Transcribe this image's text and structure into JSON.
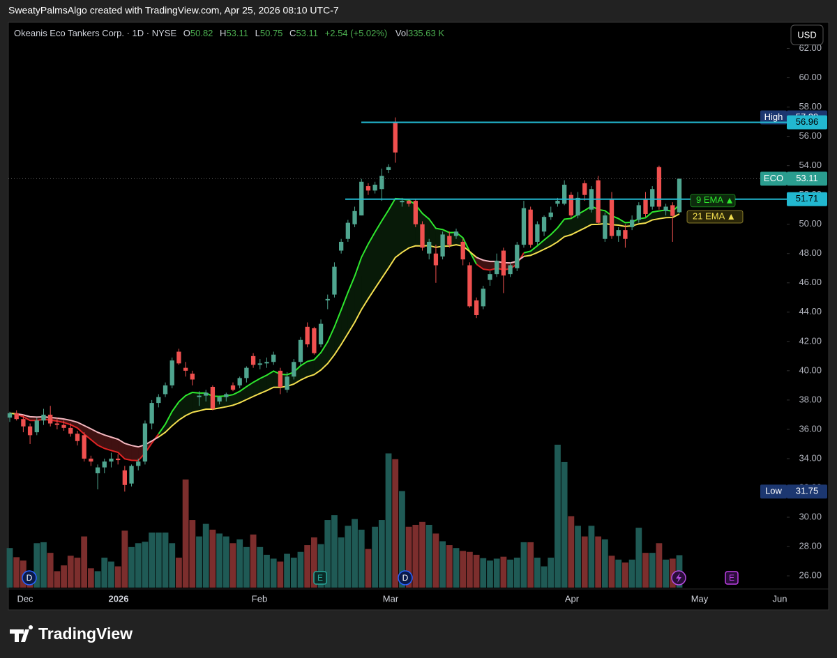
{
  "header": {
    "caption": "SweatyPalmsAlgo created with TradingView.com, Apr 25, 2026 08:10 UTC-7",
    "currency": "USD"
  },
  "legend": {
    "symbol": "Okeanis Eco Tankers Corp. · 1D · NYSE",
    "open_label": "O",
    "high_label": "H",
    "low_label": "L",
    "close_label": "C",
    "change": "+2.54 (+5.02%)",
    "volume_label": "Vol",
    "volume_text": "335.63 K"
  },
  "chart_data": {
    "type": "candlestick",
    "open": [
      36.8,
      37.1,
      36.7,
      36.2,
      35.8,
      36.6,
      37.0,
      36.4,
      36.3,
      36.1,
      35.7,
      35.6,
      34.0,
      33.0,
      33.4,
      33.8,
      34.0,
      33.2,
      32.3,
      33.5,
      33.8,
      36.4,
      37.8,
      38.4,
      39.0,
      41.3,
      40.2,
      39.8,
      38.2,
      38.3,
      38.9,
      37.9,
      38.2,
      39.0,
      39.0,
      39.5,
      41.0,
      40.4,
      40.5,
      40.6,
      40.0,
      38.7,
      39.6,
      40.6,
      43.0,
      42.9,
      41.8,
      44.8,
      45.2,
      48.2,
      49.0,
      50.0,
      50.6,
      52.6,
      52.3,
      52.4,
      53.7,
      56.96,
      51.5,
      51.6,
      51.6,
      50.0,
      48.0,
      48.0,
      47.8,
      49.2,
      49.2,
      48.8,
      47.2,
      44.8,
      44.4,
      46.2,
      46.6,
      48.2,
      46.6,
      47.0,
      48.6,
      51.0,
      48.8,
      49.5,
      50.5,
      51.4,
      51.4,
      52.0,
      50.6,
      52.8,
      51.0,
      53.0,
      49.0,
      51.7,
      49.2,
      49.6,
      49.8,
      50.3,
      51.7,
      51.2,
      53.9,
      50.9,
      51.3,
      50.82
    ],
    "high": [
      37.2,
      37.3,
      37.0,
      36.4,
      36.8,
      37.4,
      37.6,
      36.8,
      36.6,
      36.4,
      35.9,
      35.8,
      34.2,
      33.6,
      34.0,
      34.4,
      34.3,
      33.5,
      33.6,
      34.0,
      36.6,
      38.0,
      38.4,
      39.2,
      40.9,
      41.5,
      40.6,
      40.0,
      38.6,
      38.7,
      39.0,
      38.3,
      38.5,
      39.2,
      39.6,
      40.3,
      41.2,
      40.8,
      40.9,
      41.3,
      40.2,
      39.9,
      40.8,
      42.3,
      43.3,
      43.0,
      43.5,
      45.2,
      47.4,
      49.0,
      50.3,
      51.2,
      53.1,
      52.8,
      52.9,
      53.8,
      54.1,
      57.29,
      51.8,
      51.7,
      51.7,
      50.2,
      49.0,
      48.6,
      49.5,
      49.5,
      49.7,
      49.0,
      47.4,
      45.0,
      45.8,
      46.8,
      48.0,
      48.4,
      47.4,
      48.8,
      51.6,
      51.2,
      50.2,
      50.6,
      51.2,
      51.8,
      53.0,
      52.2,
      52.2,
      53.0,
      52.6,
      53.3,
      50.8,
      52.2,
      49.8,
      50.0,
      50.6,
      51.5,
      52.2,
      52.6,
      54.0,
      51.4,
      51.5,
      53.11
    ],
    "low": [
      36.5,
      36.6,
      35.8,
      35.0,
      35.6,
      36.3,
      36.2,
      36.0,
      35.9,
      35.5,
      34.9,
      33.8,
      33.5,
      31.9,
      33.0,
      33.4,
      33.6,
      31.75,
      32.1,
      33.2,
      33.6,
      36.0,
      37.5,
      38.2,
      38.8,
      40.4,
      39.6,
      39.0,
      37.6,
      37.9,
      37.3,
      37.7,
      37.9,
      38.6,
      38.8,
      39.2,
      40.2,
      40.1,
      40.2,
      40.4,
      38.4,
      38.5,
      39.4,
      40.4,
      41.6,
      41.1,
      41.6,
      44.2,
      45.0,
      48.0,
      48.8,
      49.8,
      50.6,
      52.0,
      52.1,
      51.6,
      53.5,
      54.2,
      51.2,
      51.2,
      49.8,
      48.2,
      47.6,
      46.0,
      47.6,
      48.4,
      49.0,
      47.2,
      44.3,
      43.6,
      44.2,
      45.8,
      46.4,
      45.3,
      46.4,
      46.8,
      48.4,
      48.4,
      48.6,
      49.2,
      50.3,
      51.2,
      51.3,
      50.4,
      50.4,
      51.6,
      50.8,
      50.0,
      48.8,
      49.0,
      48.8,
      48.4,
      49.6,
      50.1,
      50.5,
      51.0,
      51.0,
      50.6,
      48.8,
      50.75
    ],
    "close": [
      37.1,
      36.7,
      36.2,
      35.6,
      36.6,
      37.0,
      36.4,
      36.3,
      36.1,
      35.7,
      35.2,
      34.0,
      33.8,
      33.4,
      33.8,
      34.0,
      33.9,
      32.2,
      33.5,
      33.8,
      36.4,
      37.8,
      38.2,
      39.0,
      40.7,
      40.5,
      40.0,
      39.4,
      38.3,
      38.5,
      37.4,
      38.2,
      38.4,
      38.7,
      39.5,
      40.2,
      40.4,
      40.5,
      40.6,
      41.1,
      38.9,
      39.6,
      40.6,
      42.1,
      41.8,
      41.2,
      43.2,
      44.9,
      47.1,
      48.8,
      50.1,
      50.9,
      52.9,
      52.3,
      52.7,
      53.3,
      53.9,
      54.9,
      51.6,
      51.4,
      50.0,
      48.4,
      48.8,
      47.2,
      49.3,
      48.6,
      49.5,
      47.6,
      44.4,
      43.8,
      45.6,
      46.6,
      47.5,
      46.5,
      47.2,
      48.6,
      51.1,
      48.6,
      50.0,
      50.5,
      50.8,
      51.6,
      52.7,
      50.6,
      51.8,
      52.0,
      52.4,
      50.1,
      50.6,
      49.2,
      49.6,
      49.0,
      50.3,
      51.3,
      50.7,
      52.4,
      51.2,
      51.2,
      50.57,
      53.11
    ],
    "volume": [
      410,
      315,
      280,
      170,
      460,
      470,
      360,
      170,
      230,
      330,
      310,
      530,
      200,
      170,
      310,
      270,
      220,
      590,
      420,
      460,
      475,
      570,
      570,
      570,
      460,
      310,
      1120,
      700,
      530,
      660,
      600,
      560,
      530,
      460,
      500,
      420,
      550,
      420,
      340,
      300,
      270,
      350,
      310,
      370,
      440,
      520,
      450,
      700,
      750,
      520,
      640,
      710,
      600,
      400,
      630,
      700,
      1390,
      1330,
      1000,
      630,
      650,
      680,
      650,
      560,
      480,
      440,
      410,
      380,
      370,
      340,
      305,
      280,
      300,
      320,
      290,
      310,
      470,
      470,
      310,
      220,
      310,
      1480,
      1300,
      740,
      640,
      530,
      640,
      530,
      500,
      330,
      290,
      260,
      290,
      620,
      360,
      360,
      460,
      290,
      300,
      335.63
    ],
    "up_color": "#4fa58f",
    "down_color": "#f0504f",
    "volume_up_color": "#1f5a55",
    "volume_down_color": "#7c2e2d",
    "x_labels": [
      "Dec",
      "2026",
      "Feb",
      "Mar",
      "Apr",
      "May",
      "Jun"
    ],
    "ylim": [
      25.1,
      63.5
    ],
    "yticks": [
      {
        "value": 26,
        "label": "26.00"
      },
      {
        "value": 28,
        "label": "28.00"
      },
      {
        "value": 30,
        "label": "30.00"
      },
      {
        "value": 32,
        "label": "32.00"
      },
      {
        "value": 34,
        "label": "34.00"
      },
      {
        "value": 36,
        "label": "36.00"
      },
      {
        "value": 38,
        "label": "38.00"
      },
      {
        "value": 40,
        "label": "40.00"
      },
      {
        "value": 42,
        "label": "42.00"
      },
      {
        "value": 44,
        "label": "44.00"
      },
      {
        "value": 46,
        "label": "46.00"
      },
      {
        "value": 48,
        "label": "48.00"
      },
      {
        "value": 50,
        "label": "50.00"
      },
      {
        "value": 52,
        "label": "52.00"
      },
      {
        "value": 54,
        "label": "54.00"
      },
      {
        "value": 56,
        "label": "56.00"
      },
      {
        "value": 58,
        "label": "58.00"
      },
      {
        "value": 60,
        "label": "60.00"
      },
      {
        "value": 62,
        "label": "62.00"
      }
    ],
    "indicators": [
      {
        "name": "9 EMA",
        "period": 9,
        "color": "#2ee82e",
        "down_color": "#e02424"
      },
      {
        "name": "21 EMA",
        "period": 21,
        "color": "#f5e050",
        "down_color": "#f4b8c0"
      }
    ],
    "price_lines": [
      {
        "label": "High",
        "value": 57.29,
        "color": "#1c3770",
        "text_color": "#ffffff"
      },
      {
        "value": 56.96,
        "line": true,
        "color": "#22b8d0",
        "text_color": "#000000"
      },
      {
        "label": "ECO",
        "value": 53.11,
        "color": "#2a9d8f",
        "text_color": "#ffffff"
      },
      {
        "value": 51.71,
        "line": true,
        "color": "#22b8d0",
        "text_color": "#000000"
      },
      {
        "label": "Low",
        "value": 31.75,
        "color": "#1c3770",
        "text_color": "#ffffff"
      }
    ],
    "events": [
      "D",
      "E",
      "D",
      "E"
    ]
  },
  "footer": {
    "brand": "TradingView"
  }
}
